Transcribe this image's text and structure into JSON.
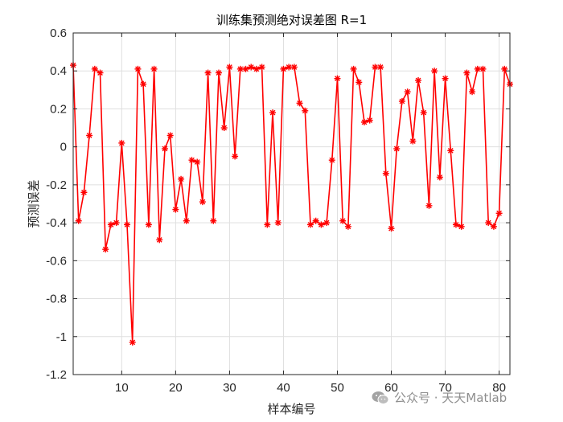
{
  "chart_data": {
    "type": "line",
    "title": "训练集预测绝对误差图 R=1",
    "xlabel": "样本编号",
    "ylabel": "预测误差",
    "xlim": [
      1,
      82
    ],
    "ylim": [
      -1.2,
      0.6
    ],
    "xticks": [
      10,
      20,
      30,
      40,
      50,
      60,
      70,
      80
    ],
    "yticks": [
      -1.2,
      -1,
      -0.8,
      -0.6,
      -0.4,
      -0.2,
      0,
      0.2,
      0.4,
      0.6
    ],
    "yticklabels": [
      "-1.2",
      "-1",
      "-0.8",
      "-0.6",
      "-0.4",
      "-0.2",
      "0",
      "0.2",
      "0.4",
      "0.6"
    ],
    "grid": true,
    "series": [
      {
        "color": "#ff0000",
        "marker": "asterisk",
        "x": [
          1,
          2,
          3,
          4,
          5,
          6,
          7,
          8,
          9,
          10,
          11,
          12,
          13,
          14,
          15,
          16,
          17,
          18,
          19,
          20,
          21,
          22,
          23,
          24,
          25,
          26,
          27,
          28,
          29,
          30,
          31,
          32,
          33,
          34,
          35,
          36,
          37,
          38,
          39,
          40,
          41,
          42,
          43,
          44,
          45,
          46,
          47,
          48,
          49,
          50,
          51,
          52,
          53,
          54,
          55,
          56,
          57,
          58,
          59,
          60,
          61,
          62,
          63,
          64,
          65,
          66,
          67,
          68,
          69,
          70,
          71,
          72,
          73,
          74,
          75,
          76,
          77,
          78,
          79,
          80,
          81,
          82
        ],
        "values": [
          0.43,
          -0.39,
          -0.24,
          0.06,
          0.41,
          0.39,
          -0.54,
          -0.41,
          -0.4,
          0.02,
          -0.41,
          -1.03,
          0.41,
          0.33,
          -0.41,
          0.41,
          -0.49,
          -0.01,
          0.06,
          -0.33,
          -0.17,
          -0.39,
          -0.07,
          -0.08,
          -0.29,
          0.39,
          -0.39,
          0.39,
          0.1,
          0.42,
          -0.05,
          0.41,
          0.41,
          0.42,
          0.41,
          0.42,
          -0.41,
          0.18,
          -0.4,
          0.41,
          0.42,
          0.42,
          0.23,
          0.19,
          -0.41,
          -0.39,
          -0.41,
          -0.4,
          -0.07,
          0.36,
          -0.39,
          -0.42,
          0.41,
          0.34,
          0.13,
          0.14,
          0.42,
          0.42,
          -0.14,
          -0.43,
          -0.01,
          0.24,
          0.29,
          0.03,
          0.35,
          0.18,
          -0.31,
          0.4,
          -0.16,
          0.36,
          -0.02,
          -0.41,
          -0.42,
          0.39,
          0.29,
          0.41,
          0.41,
          -0.4,
          -0.42,
          -0.35,
          0.41,
          0.33
        ]
      }
    ]
  },
  "watermark": {
    "text": "公众号 · 天天Matlab",
    "icon": "wechat-icon"
  }
}
